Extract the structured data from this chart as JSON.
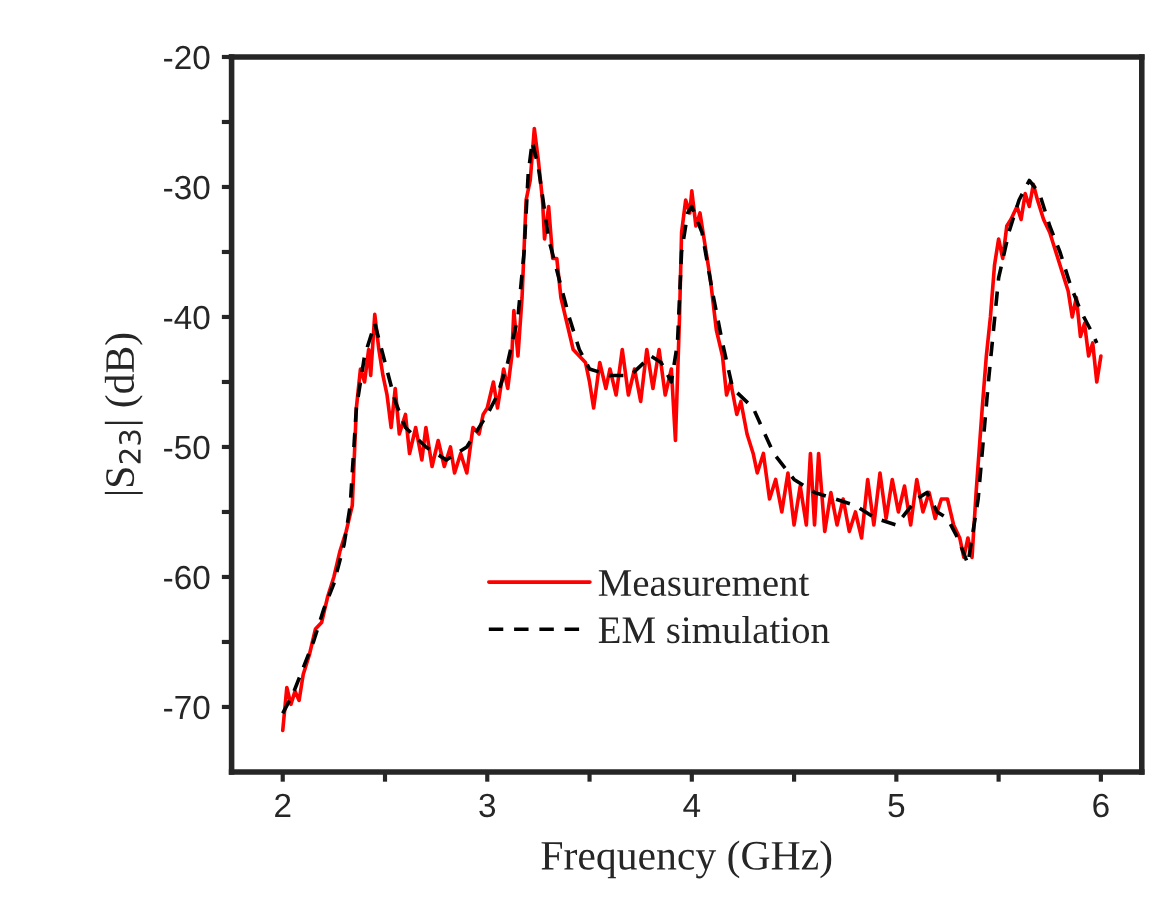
{
  "chart_data": {
    "type": "line",
    "xlabel": "Frequency (GHz)",
    "ylabel": "|S$_{23}$| (dB)",
    "xlim": [
      1.75,
      6.2
    ],
    "ylim": [
      -75,
      -20
    ],
    "xticks": [
      2,
      {
        "value": 2.5,
        "label": null
      },
      3,
      {
        "value": 3.5,
        "label": null
      },
      4,
      {
        "value": 4.5,
        "label": null
      },
      5,
      {
        "value": 5.5,
        "label": null
      },
      6
    ],
    "yticks": [
      -70,
      {
        "value": -65,
        "label": null
      },
      -60,
      {
        "value": -55,
        "label": null
      },
      -50,
      {
        "value": -45,
        "label": null
      },
      -40,
      {
        "value": -35,
        "label": null
      },
      -30,
      {
        "value": -25,
        "label": null
      },
      -20
    ],
    "grid": false,
    "legend": "bottom",
    "series": [
      {
        "name": "Measurement",
        "color": "#ff0000",
        "line_style": "solid",
        "x": [
          2.0,
          2.02,
          2.04,
          2.06,
          2.08,
          2.1,
          2.13,
          2.16,
          2.19,
          2.22,
          2.25,
          2.28,
          2.31,
          2.34,
          2.36,
          2.38,
          2.4,
          2.42,
          2.43,
          2.45,
          2.47,
          2.49,
          2.51,
          2.53,
          2.55,
          2.57,
          2.6,
          2.62,
          2.65,
          2.68,
          2.7,
          2.73,
          2.76,
          2.79,
          2.82,
          2.84,
          2.87,
          2.9,
          2.93,
          2.96,
          2.98,
          3.0,
          3.03,
          3.05,
          3.08,
          3.1,
          3.12,
          3.13,
          3.15,
          3.17,
          3.19,
          3.21,
          3.23,
          3.25,
          3.27,
          3.28,
          3.3,
          3.32,
          3.34,
          3.36,
          3.39,
          3.42,
          3.45,
          3.48,
          3.5,
          3.52,
          3.55,
          3.58,
          3.6,
          3.63,
          3.66,
          3.69,
          3.72,
          3.75,
          3.78,
          3.81,
          3.84,
          3.87,
          3.9,
          3.92,
          3.94,
          3.95,
          3.97,
          3.99,
          4.0,
          4.02,
          4.04,
          4.06,
          4.09,
          4.12,
          4.15,
          4.17,
          4.19,
          4.22,
          4.24,
          4.27,
          4.3,
          4.32,
          4.35,
          4.38,
          4.41,
          4.44,
          4.47,
          4.5,
          4.53,
          4.56,
          4.58,
          4.6,
          4.62,
          4.65,
          4.68,
          4.71,
          4.74,
          4.77,
          4.8,
          4.83,
          4.86,
          4.89,
          4.92,
          4.95,
          4.98,
          5.01,
          5.04,
          5.07,
          5.1,
          5.13,
          5.16,
          5.19,
          5.22,
          5.25,
          5.28,
          5.31,
          5.33,
          5.35,
          5.37,
          5.39,
          5.42,
          5.44,
          5.46,
          5.48,
          5.5,
          5.52,
          5.54,
          5.56,
          5.59,
          5.61,
          5.63,
          5.65,
          5.67,
          5.69,
          5.72,
          5.75,
          5.78,
          5.81,
          5.84,
          5.86,
          5.88,
          5.9,
          5.92,
          5.94,
          5.96,
          5.98,
          6.0
        ],
        "values": [
          -71.8,
          -68.5,
          -69.8,
          -68.8,
          -69.5,
          -67.5,
          -66,
          -64,
          -63.5,
          -61.5,
          -60,
          -58,
          -56.5,
          -54.5,
          -47,
          -44,
          -45,
          -42.5,
          -44.5,
          -39.8,
          -42.5,
          -44.5,
          -46,
          -48.5,
          -45.5,
          -49,
          -47.5,
          -50.5,
          -48.5,
          -51,
          -48.5,
          -51.5,
          -49.5,
          -51.5,
          -50,
          -52,
          -50.5,
          -52,
          -48.5,
          -49,
          -47.5,
          -47,
          -45,
          -47,
          -44,
          -45.5,
          -43,
          -39.5,
          -43,
          -38.5,
          -31,
          -29.5,
          -25.5,
          -28,
          -31,
          -34,
          -31.5,
          -35.5,
          -35.5,
          -38.5,
          -40.5,
          -42.5,
          -43,
          -43.5,
          -45,
          -47,
          -43.5,
          -45.5,
          -44,
          -46,
          -42.5,
          -46,
          -44,
          -46.5,
          -42.5,
          -45.5,
          -42.5,
          -46,
          -44,
          -49.5,
          -40,
          -33.5,
          -31,
          -32,
          -30.3,
          -33,
          -32,
          -34,
          -37,
          -41,
          -43,
          -46,
          -45,
          -47.5,
          -46.5,
          -49,
          -50.5,
          -52,
          -50.5,
          -54,
          -52.5,
          -55,
          -52,
          -56,
          -53,
          -56,
          -50.5,
          -56,
          -50.5,
          -56.5,
          -53.5,
          -56,
          -54,
          -56.5,
          -55,
          -57,
          -52.5,
          -56,
          -52,
          -55.5,
          -52.5,
          -55,
          -53,
          -56,
          -52.5,
          -55,
          -53.5,
          -55.5,
          -54,
          -54,
          -56,
          -57,
          -58.5,
          -57,
          -58.5,
          -53.5,
          -47,
          -43,
          -40,
          -36,
          -34,
          -35.5,
          -33,
          -32.5,
          -31.5,
          -32.5,
          -30.5,
          -31.5,
          -29.8,
          -31,
          -32.5,
          -33.5,
          -35,
          -36.5,
          -38,
          -40,
          -38.5,
          -41.5,
          -40.5,
          -43,
          -42,
          -45,
          -43
        ]
      },
      {
        "name": "EM simulation",
        "color": "#000000",
        "line_style": "dashed",
        "x": [
          2.0,
          2.05,
          2.1,
          2.15,
          2.2,
          2.25,
          2.3,
          2.33,
          2.36,
          2.4,
          2.45,
          2.5,
          2.55,
          2.6,
          2.7,
          2.8,
          2.9,
          3.0,
          3.05,
          3.1,
          3.15,
          3.18,
          3.2,
          3.22,
          3.25,
          3.3,
          3.35,
          3.4,
          3.45,
          3.5,
          3.6,
          3.7,
          3.8,
          3.85,
          3.9,
          3.93,
          3.95,
          3.98,
          4.0,
          4.05,
          4.1,
          4.15,
          4.2,
          4.3,
          4.4,
          4.5,
          4.6,
          4.7,
          4.8,
          4.9,
          5.0,
          5.05,
          5.1,
          5.15,
          5.2,
          5.25,
          5.3,
          5.35,
          5.4,
          5.45,
          5.5,
          5.55,
          5.6,
          5.65,
          5.7,
          5.75,
          5.8,
          5.85,
          5.9,
          5.95,
          5.98
        ],
        "values": [
          -70.5,
          -69,
          -67,
          -65,
          -62.5,
          -60.5,
          -57.5,
          -54.5,
          -47,
          -43,
          -40.5,
          -43.5,
          -46.5,
          -48.5,
          -50,
          -51,
          -50,
          -47.5,
          -46,
          -43.5,
          -40,
          -35,
          -29,
          -26.5,
          -28.5,
          -34,
          -37,
          -40,
          -42.5,
          -44,
          -44.5,
          -44.5,
          -43,
          -43.5,
          -45,
          -42,
          -35,
          -32,
          -31.5,
          -33.5,
          -38,
          -42,
          -45.5,
          -47,
          -50.5,
          -52.5,
          -53.5,
          -54,
          -54.5,
          -55.5,
          -56,
          -55,
          -54,
          -53.5,
          -55,
          -55.5,
          -57,
          -59,
          -54,
          -45,
          -37,
          -33.5,
          -31,
          -29.5,
          -30.5,
          -33,
          -35,
          -37.5,
          -39.5,
          -41,
          -42
        ]
      }
    ]
  }
}
